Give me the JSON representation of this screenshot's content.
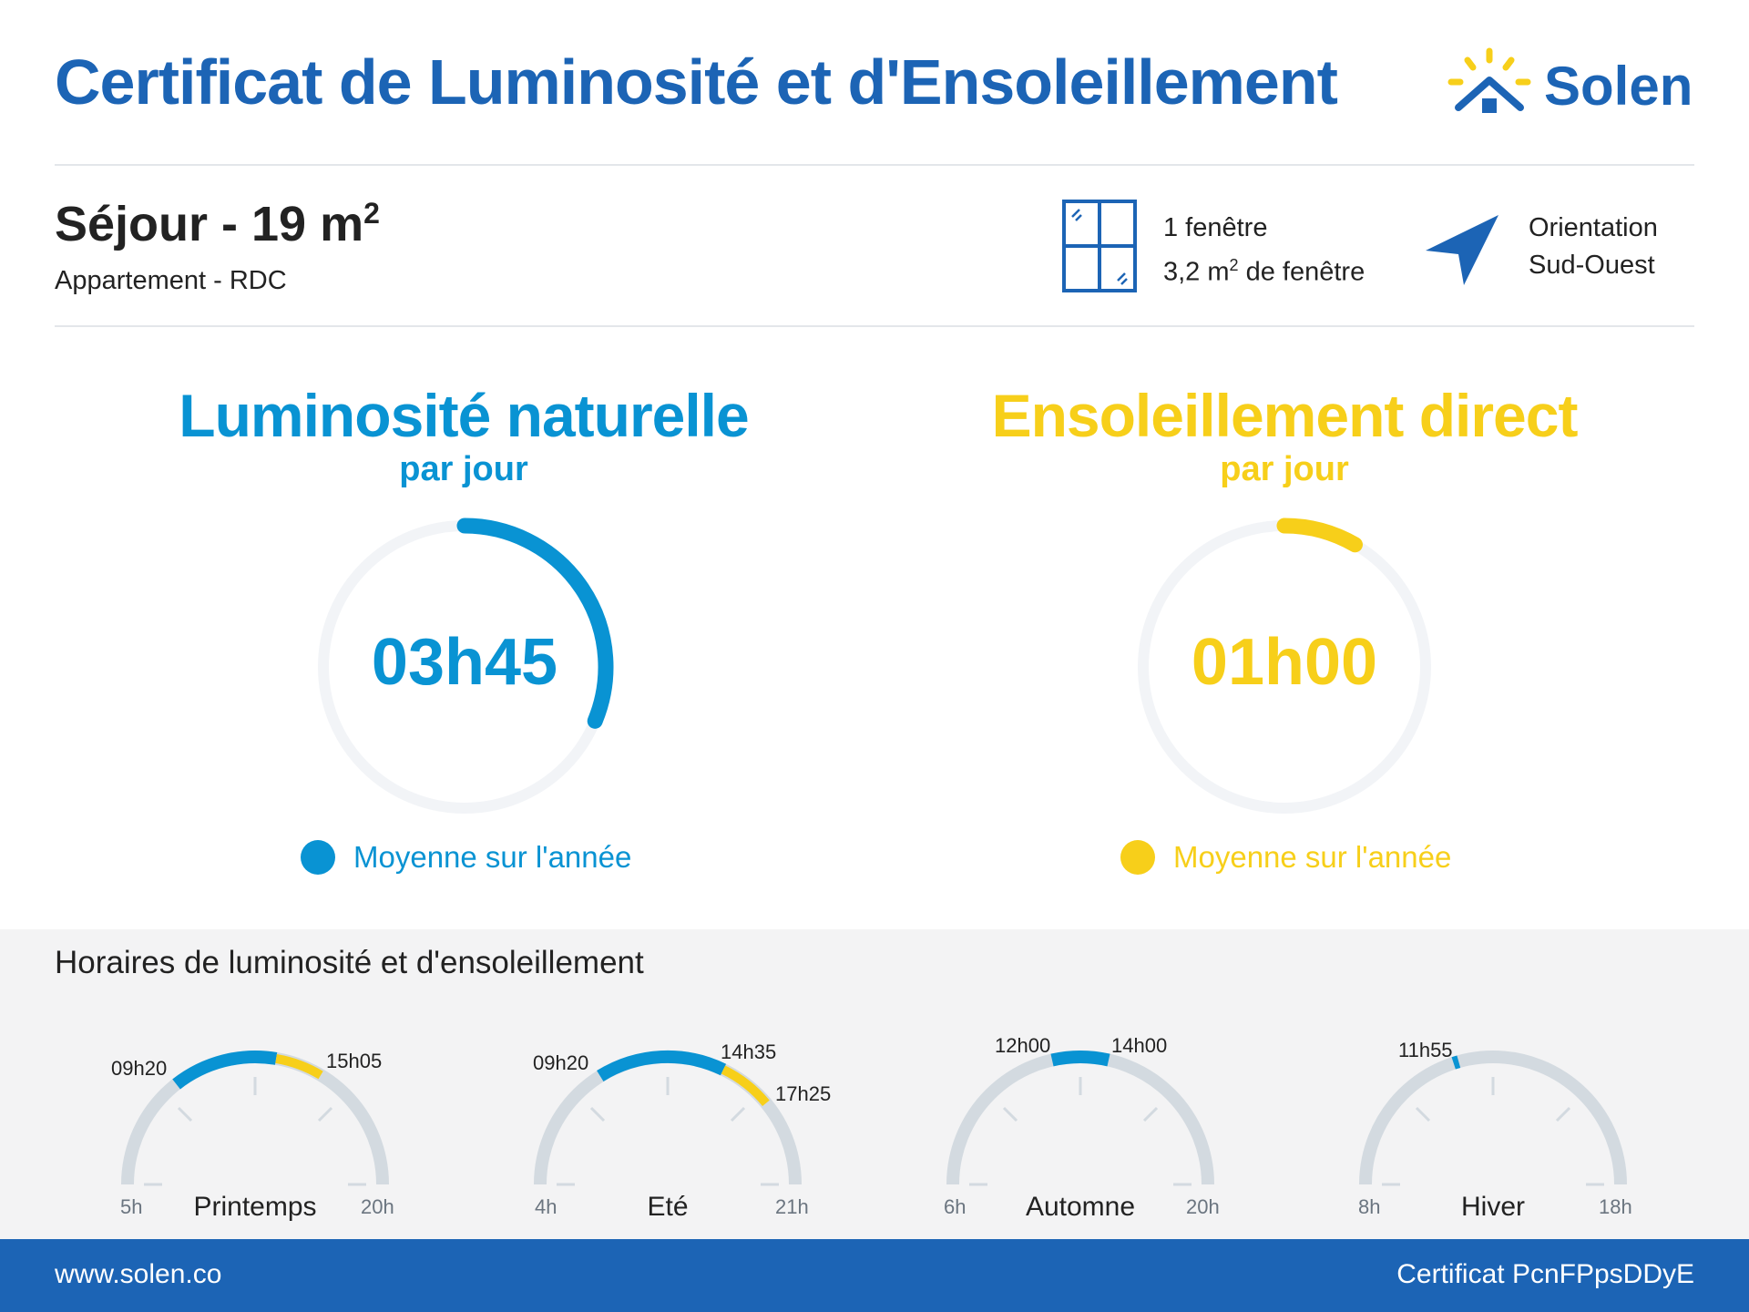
{
  "header": {
    "title": "Certificat de Luminosité et d'Ensoleillement",
    "logo_text": "Solen"
  },
  "room": {
    "name": "Séjour - 19 m",
    "area_exp": "2",
    "subtitle": "Appartement - RDC"
  },
  "window_info": {
    "count": "1 fenêtre",
    "area_prefix": "3,2 m",
    "area_exp": "2",
    "area_suffix": " de fenêtre"
  },
  "orientation": {
    "line1": "Orientation",
    "line2": "Sud-Ouest"
  },
  "luminosity": {
    "title": "Luminosité naturelle",
    "subtitle": "par jour",
    "value": "03h45",
    "legend": "Moyenne sur l'année",
    "color": "#0993d3"
  },
  "sunshine": {
    "title": "Ensoleillement direct",
    "subtitle": "par jour",
    "value": "01h00",
    "legend": "Moyenne sur l'année",
    "color": "#f7cf1a"
  },
  "schedule": {
    "title": "Horaires de luminosité et d'ensoleillement",
    "seasons": [
      {
        "name": "Printemps",
        "start": "5h",
        "end": "20h",
        "t1": "09h20",
        "t2": "15h05",
        "t3": ""
      },
      {
        "name": "Eté",
        "start": "4h",
        "end": "21h",
        "t1": "09h20",
        "t2": "14h35",
        "t3": "17h25"
      },
      {
        "name": "Automne",
        "start": "6h",
        "end": "20h",
        "t1": "12h00",
        "t2": "14h00",
        "t3": ""
      },
      {
        "name": "Hiver",
        "start": "8h",
        "end": "18h",
        "t1": "11h55",
        "t2": "",
        "t3": ""
      }
    ]
  },
  "footer": {
    "url": "www.solen.co",
    "certificate": "Certificat PcnFPpsDDyE"
  }
}
